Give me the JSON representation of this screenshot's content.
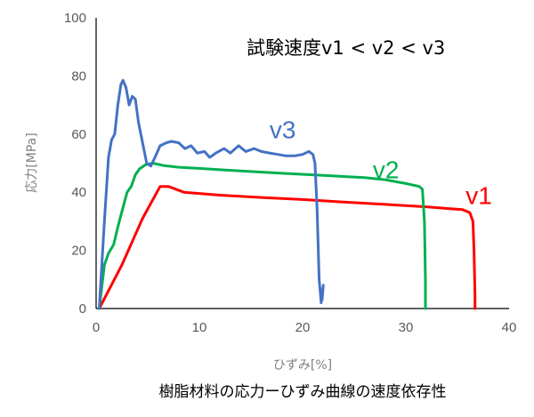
{
  "chart_data": {
    "type": "line",
    "title": "",
    "caption": "樹脂材料の応力ーひずみ曲線の速度依存性",
    "annotation": "試験速度v1 < v2 < v3",
    "xlabel": "ひずみ[%]",
    "ylabel": "応力[MPa]",
    "xlim": [
      0,
      40
    ],
    "ylim": [
      0,
      100
    ],
    "x_ticks": [
      0,
      10,
      20,
      30,
      40
    ],
    "x_tick_labels": [
      "0",
      "10",
      "20",
      "30",
      "40"
    ],
    "y_ticks": [
      0,
      20,
      40,
      60,
      80,
      100
    ],
    "y_tick_labels": [
      "0",
      "20",
      "40",
      "60",
      "80",
      "100"
    ],
    "grid": false,
    "legend": "none",
    "series": [
      {
        "name": "v1",
        "color": "#ff0000",
        "label_at": [
          35.8,
          36.0
        ],
        "points": [
          [
            0.3,
            0
          ],
          [
            2.5,
            15
          ],
          [
            4.5,
            31
          ],
          [
            6.2,
            42
          ],
          [
            7.0,
            42
          ],
          [
            8.5,
            40
          ],
          [
            12,
            39
          ],
          [
            16,
            38.2
          ],
          [
            20,
            37.5
          ],
          [
            24,
            36.6
          ],
          [
            28,
            35.8
          ],
          [
            32,
            35
          ],
          [
            35.5,
            34
          ],
          [
            36.2,
            33
          ],
          [
            36.5,
            30
          ],
          [
            36.6,
            20
          ],
          [
            36.7,
            5
          ],
          [
            36.7,
            0
          ]
        ]
      },
      {
        "name": "v2",
        "color": "#00b050",
        "label_at": [
          26.8,
          44.8
        ],
        "points": [
          [
            0.3,
            0
          ],
          [
            0.8,
            15
          ],
          [
            1.2,
            19
          ],
          [
            1.7,
            22
          ],
          [
            2.1,
            28
          ],
          [
            2.4,
            32
          ],
          [
            2.7,
            36
          ],
          [
            3.0,
            40
          ],
          [
            3.4,
            42
          ],
          [
            3.8,
            46
          ],
          [
            4.2,
            48
          ],
          [
            4.8,
            49.5
          ],
          [
            5.5,
            50
          ],
          [
            6.5,
            49.2
          ],
          [
            8,
            48.6
          ],
          [
            10,
            48.2
          ],
          [
            14,
            47.3
          ],
          [
            18,
            46.5
          ],
          [
            22,
            45.8
          ],
          [
            26,
            45
          ],
          [
            28,
            44.3
          ],
          [
            30,
            43
          ],
          [
            31.3,
            42
          ],
          [
            31.6,
            41
          ],
          [
            31.8,
            30
          ],
          [
            31.9,
            10
          ],
          [
            31.9,
            0
          ]
        ]
      },
      {
        "name": "v3",
        "color": "#4472c4",
        "label_at": [
          16.8,
          58.5
        ],
        "points": [
          [
            0.3,
            0
          ],
          [
            0.8,
            30
          ],
          [
            1.2,
            52
          ],
          [
            1.5,
            58
          ],
          [
            1.8,
            60
          ],
          [
            2.1,
            70
          ],
          [
            2.4,
            77
          ],
          [
            2.6,
            78.5
          ],
          [
            2.9,
            76
          ],
          [
            3.2,
            70
          ],
          [
            3.5,
            73
          ],
          [
            3.8,
            72
          ],
          [
            4.1,
            64
          ],
          [
            4.5,
            57
          ],
          [
            4.9,
            50
          ],
          [
            5.3,
            49
          ],
          [
            5.7,
            52
          ],
          [
            6.2,
            56
          ],
          [
            6.8,
            57
          ],
          [
            7.3,
            57.5
          ],
          [
            8.0,
            57
          ],
          [
            8.6,
            55
          ],
          [
            9.2,
            56
          ],
          [
            9.8,
            53.5
          ],
          [
            10.5,
            54
          ],
          [
            11.0,
            52
          ],
          [
            11.6,
            53.5
          ],
          [
            12.4,
            55
          ],
          [
            13,
            53.5
          ],
          [
            13.8,
            56
          ],
          [
            14.5,
            54
          ],
          [
            15.3,
            55
          ],
          [
            16.0,
            54
          ],
          [
            16.8,
            53.5
          ],
          [
            17.6,
            53
          ],
          [
            18.4,
            52.5
          ],
          [
            19.2,
            52.5
          ],
          [
            20.0,
            53
          ],
          [
            20.6,
            54
          ],
          [
            21.0,
            53
          ],
          [
            21.2,
            50
          ],
          [
            21.4,
            35
          ],
          [
            21.6,
            10
          ],
          [
            21.8,
            2
          ],
          [
            22.0,
            8
          ],
          [
            21.9,
            3
          ]
        ]
      }
    ]
  }
}
